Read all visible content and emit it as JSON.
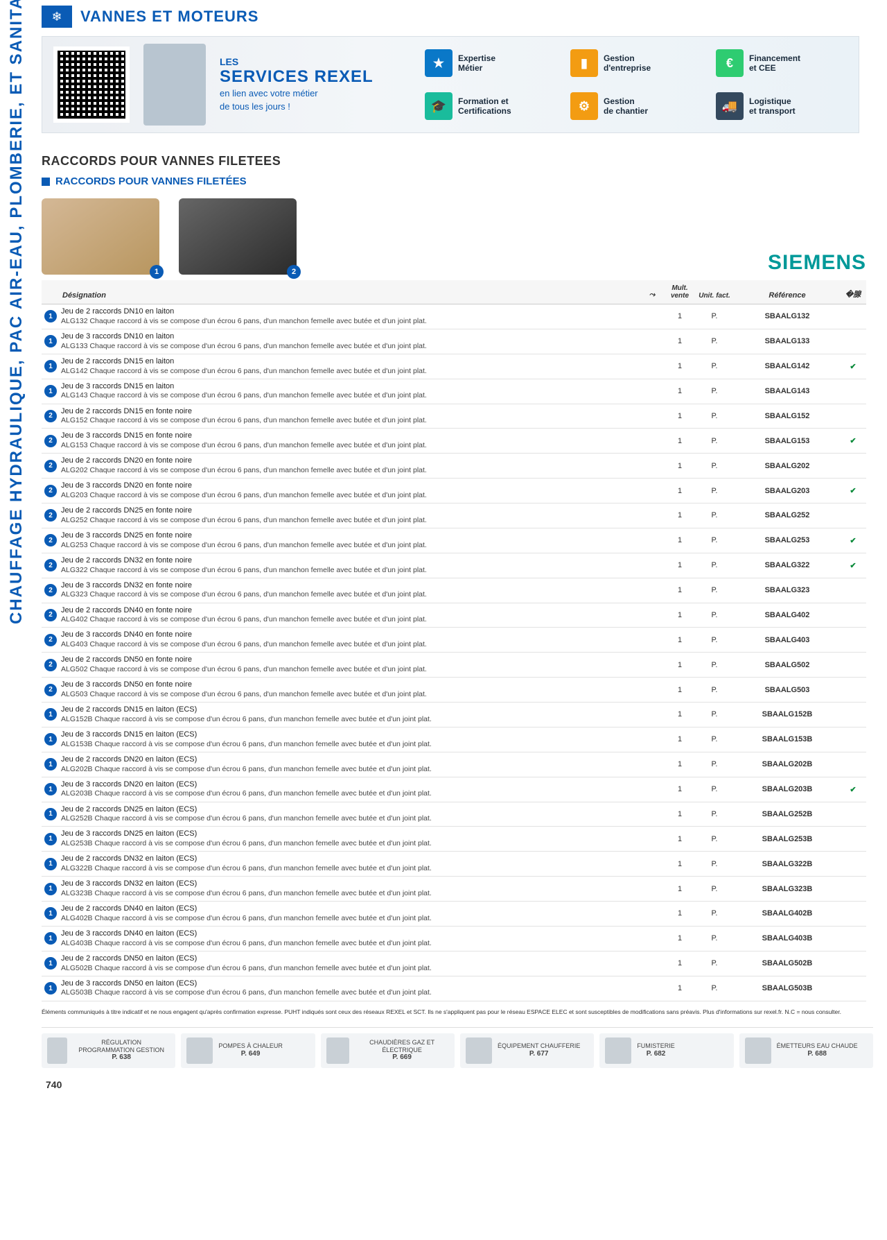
{
  "header": {
    "title": "VANNES ET MOTEURS",
    "icon": "❄"
  },
  "sidebar": {
    "label": "CHAUFFAGE HYDRAULIQUE, PAC AIR-EAU, PLOMBERIE, ET SANITAIRE"
  },
  "banner": {
    "les": "LES",
    "title": "SERVICES REXEL",
    "subtitle1": "en lien avec votre métier",
    "subtitle2": "de tous les jours !",
    "services": [
      {
        "label": "Expertise\nMétier",
        "cls": "ic-blue",
        "glyph": "★"
      },
      {
        "label": "Gestion\nd'entreprise",
        "cls": "ic-orange",
        "glyph": "▮"
      },
      {
        "label": "Financement\net CEE",
        "cls": "ic-green",
        "glyph": "€"
      },
      {
        "label": "Formation et\nCertifications",
        "cls": "ic-teal",
        "glyph": "🎓"
      },
      {
        "label": "Gestion\nde chantier",
        "cls": "ic-orange",
        "glyph": "⚙"
      },
      {
        "label": "Logistique\net transport",
        "cls": "ic-navy",
        "glyph": "🚚"
      }
    ]
  },
  "section": {
    "h1": "RACCORDS POUR VANNES FILETEES",
    "h2": "RACCORDS POUR VANNES FILETÉES"
  },
  "brand": "SIEMENS",
  "tableHead": {
    "desig": "Désignation",
    "mult": "Mult. vente",
    "unit": "Unit. fact.",
    "ref": "Référence"
  },
  "rows": [
    {
      "b": "1",
      "t1": "Jeu de 2 raccords DN10 en laiton",
      "t2": "ALG132 Chaque raccord à vis se compose d'un écrou 6 pans, d'un manchon femelle avec butée et d'un joint plat.",
      "m": "1",
      "u": "P.",
      "r": "SBAALG132",
      "c": ""
    },
    {
      "b": "1",
      "t1": "Jeu de 3 raccords DN10 en laiton",
      "t2": "ALG133 Chaque raccord à vis se compose d'un écrou 6 pans, d'un manchon femelle avec butée et d'un joint plat.",
      "m": "1",
      "u": "P.",
      "r": "SBAALG133",
      "c": ""
    },
    {
      "b": "1",
      "t1": "Jeu de 2 raccords DN15 en laiton",
      "t2": "ALG142 Chaque raccord à vis se compose d'un écrou 6 pans, d'un manchon femelle avec butée et d'un joint plat.",
      "m": "1",
      "u": "P.",
      "r": "SBAALG142",
      "c": "✔"
    },
    {
      "b": "1",
      "t1": "Jeu de 3 raccords DN15 en laiton",
      "t2": "ALG143 Chaque raccord à vis se compose d'un écrou 6 pans, d'un manchon femelle avec butée et d'un joint plat.",
      "m": "1",
      "u": "P.",
      "r": "SBAALG143",
      "c": ""
    },
    {
      "b": "2",
      "t1": "Jeu de 2 raccords DN15 en fonte noire",
      "t2": "ALG152 Chaque raccord à vis se compose d'un écrou 6 pans, d'un manchon femelle avec butée et d'un joint plat.",
      "m": "1",
      "u": "P.",
      "r": "SBAALG152",
      "c": ""
    },
    {
      "b": "2",
      "t1": "Jeu de 3 raccords DN15 en fonte noire",
      "t2": "ALG153 Chaque raccord à vis se compose d'un écrou 6 pans, d'un manchon femelle avec butée et d'un joint plat.",
      "m": "1",
      "u": "P.",
      "r": "SBAALG153",
      "c": "✔"
    },
    {
      "b": "2",
      "t1": "Jeu de 2 raccords DN20 en fonte noire",
      "t2": "ALG202 Chaque raccord à vis se compose d'un écrou 6 pans, d'un manchon femelle avec butée et d'un joint plat.",
      "m": "1",
      "u": "P.",
      "r": "SBAALG202",
      "c": ""
    },
    {
      "b": "2",
      "t1": "Jeu de 3 raccords DN20 en fonte noire",
      "t2": "ALG203 Chaque raccord à vis se compose d'un écrou 6 pans, d'un manchon femelle avec butée et d'un joint plat.",
      "m": "1",
      "u": "P.",
      "r": "SBAALG203",
      "c": "✔"
    },
    {
      "b": "2",
      "t1": "Jeu de 2 raccords DN25 en fonte noire",
      "t2": "ALG252 Chaque raccord à vis se compose d'un écrou 6 pans, d'un manchon femelle avec butée et d'un joint plat.",
      "m": "1",
      "u": "P.",
      "r": "SBAALG252",
      "c": ""
    },
    {
      "b": "2",
      "t1": "Jeu de 3 raccords DN25 en fonte noire",
      "t2": "ALG253 Chaque raccord à vis se compose d'un écrou 6 pans, d'un manchon femelle avec butée et d'un joint plat.",
      "m": "1",
      "u": "P.",
      "r": "SBAALG253",
      "c": "✔"
    },
    {
      "b": "2",
      "t1": "Jeu de 2 raccords DN32 en fonte noire",
      "t2": "ALG322 Chaque raccord à vis se compose d'un écrou 6 pans, d'un manchon femelle avec butée et d'un joint plat.",
      "m": "1",
      "u": "P.",
      "r": "SBAALG322",
      "c": "✔"
    },
    {
      "b": "2",
      "t1": "Jeu de 3 raccords DN32 en fonte noire",
      "t2": "ALG323 Chaque raccord à vis se compose d'un écrou 6 pans, d'un manchon femelle avec butée et d'un joint plat.",
      "m": "1",
      "u": "P.",
      "r": "SBAALG323",
      "c": ""
    },
    {
      "b": "2",
      "t1": "Jeu de 2 raccords DN40 en fonte noire",
      "t2": "ALG402 Chaque raccord à vis se compose d'un écrou 6 pans, d'un manchon femelle avec butée et d'un joint plat.",
      "m": "1",
      "u": "P.",
      "r": "SBAALG402",
      "c": ""
    },
    {
      "b": "2",
      "t1": "Jeu de 3 raccords DN40 en fonte noire",
      "t2": "ALG403 Chaque raccord à vis se compose d'un écrou 6 pans, d'un manchon femelle avec butée et d'un joint plat.",
      "m": "1",
      "u": "P.",
      "r": "SBAALG403",
      "c": ""
    },
    {
      "b": "2",
      "t1": "Jeu de 2 raccords DN50 en fonte noire",
      "t2": "ALG502 Chaque raccord à vis se compose d'un écrou 6 pans, d'un manchon femelle avec butée et d'un joint plat.",
      "m": "1",
      "u": "P.",
      "r": "SBAALG502",
      "c": ""
    },
    {
      "b": "2",
      "t1": "Jeu de 3 raccords DN50 en fonte noire",
      "t2": "ALG503 Chaque raccord à vis se compose d'un écrou 6 pans, d'un manchon femelle avec butée et d'un joint plat.",
      "m": "1",
      "u": "P.",
      "r": "SBAALG503",
      "c": ""
    },
    {
      "b": "1",
      "t1": "Jeu de 2 raccords DN15 en laiton (ECS)",
      "t2": "ALG152B Chaque raccord à vis se compose d'un écrou 6 pans, d'un manchon femelle avec butée et d'un joint plat.",
      "m": "1",
      "u": "P.",
      "r": "SBAALG152B",
      "c": ""
    },
    {
      "b": "1",
      "t1": "Jeu de 3 raccords DN15 en laiton (ECS)",
      "t2": "ALG153B Chaque raccord à vis se compose d'un écrou 6 pans, d'un manchon femelle avec butée et d'un joint plat.",
      "m": "1",
      "u": "P.",
      "r": "SBAALG153B",
      "c": ""
    },
    {
      "b": "1",
      "t1": "Jeu de 2 raccords DN20 en laiton (ECS)",
      "t2": "ALG202B Chaque raccord à vis se compose d'un écrou 6 pans, d'un manchon femelle avec butée et d'un joint plat.",
      "m": "1",
      "u": "P.",
      "r": "SBAALG202B",
      "c": ""
    },
    {
      "b": "1",
      "t1": "Jeu de 3 raccords DN20 en laiton (ECS)",
      "t2": "ALG203B Chaque raccord à vis se compose d'un écrou 6 pans, d'un manchon femelle avec butée et d'un joint plat.",
      "m": "1",
      "u": "P.",
      "r": "SBAALG203B",
      "c": "✔"
    },
    {
      "b": "1",
      "t1": "Jeu de 2 raccords DN25 en laiton (ECS)",
      "t2": "ALG252B Chaque raccord à vis se compose d'un écrou 6 pans, d'un manchon femelle avec butée et d'un joint plat.",
      "m": "1",
      "u": "P.",
      "r": "SBAALG252B",
      "c": ""
    },
    {
      "b": "1",
      "t1": "Jeu de 3 raccords DN25 en laiton (ECS)",
      "t2": "ALG253B Chaque raccord à vis se compose d'un écrou 6 pans, d'un manchon femelle avec butée et d'un joint plat.",
      "m": "1",
      "u": "P.",
      "r": "SBAALG253B",
      "c": ""
    },
    {
      "b": "1",
      "t1": "Jeu de 2 raccords DN32 en laiton (ECS)",
      "t2": "ALG322B Chaque raccord à vis se compose d'un écrou 6 pans, d'un manchon femelle avec butée et d'un joint plat.",
      "m": "1",
      "u": "P.",
      "r": "SBAALG322B",
      "c": ""
    },
    {
      "b": "1",
      "t1": "Jeu de 3 raccords DN32 en laiton (ECS)",
      "t2": "ALG323B Chaque raccord à vis se compose d'un écrou 6 pans, d'un manchon femelle avec butée et d'un joint plat.",
      "m": "1",
      "u": "P.",
      "r": "SBAALG323B",
      "c": ""
    },
    {
      "b": "1",
      "t1": "Jeu de 2 raccords DN40 en laiton (ECS)",
      "t2": "ALG402B Chaque raccord à vis se compose d'un écrou 6 pans, d'un manchon femelle avec butée et d'un joint plat.",
      "m": "1",
      "u": "P.",
      "r": "SBAALG402B",
      "c": ""
    },
    {
      "b": "1",
      "t1": "Jeu de 3 raccords DN40 en laiton (ECS)",
      "t2": "ALG403B Chaque raccord à vis se compose d'un écrou 6 pans, d'un manchon femelle avec butée et d'un joint plat.",
      "m": "1",
      "u": "P.",
      "r": "SBAALG403B",
      "c": ""
    },
    {
      "b": "1",
      "t1": "Jeu de 2 raccords DN50 en laiton (ECS)",
      "t2": "ALG502B Chaque raccord à vis se compose d'un écrou 6 pans, d'un manchon femelle avec butée et d'un joint plat.",
      "m": "1",
      "u": "P.",
      "r": "SBAALG502B",
      "c": ""
    },
    {
      "b": "1",
      "t1": "Jeu de 3 raccords DN50 en laiton (ECS)",
      "t2": "ALG503B Chaque raccord à vis se compose d'un écrou 6 pans, d'un manchon femelle avec butée et d'un joint plat.",
      "m": "1",
      "u": "P.",
      "r": "SBAALG503B",
      "c": ""
    }
  ],
  "disclaimer": "Éléments communiqués à titre indicatif et ne nous engagent qu'après confirmation expresse. PUHT indiqués sont ceux des réseaux REXEL et SCT. Ils ne s'appliquent pas pour le réseau ESPACE ELEC et sont susceptibles de modifications sans préavis. Plus d'informations sur rexel.fr. N.C = nous consulter.",
  "footer": {
    "items": [
      {
        "label": "RÉGULATION PROGRAMMATION GESTION",
        "page": "P. 638"
      },
      {
        "label": "POMPES À CHALEUR",
        "page": "P. 649"
      },
      {
        "label": "CHAUDIÈRES GAZ ET ÉLECTRIQUE",
        "page": "P. 669"
      },
      {
        "label": "ÉQUIPEMENT CHAUFFERIE",
        "page": "P. 677"
      },
      {
        "label": "FUMISTERIE",
        "page": "P. 682"
      },
      {
        "label": "ÉMETTEURS EAU CHAUDE",
        "page": "P. 688"
      }
    ],
    "pagenum": "740"
  }
}
